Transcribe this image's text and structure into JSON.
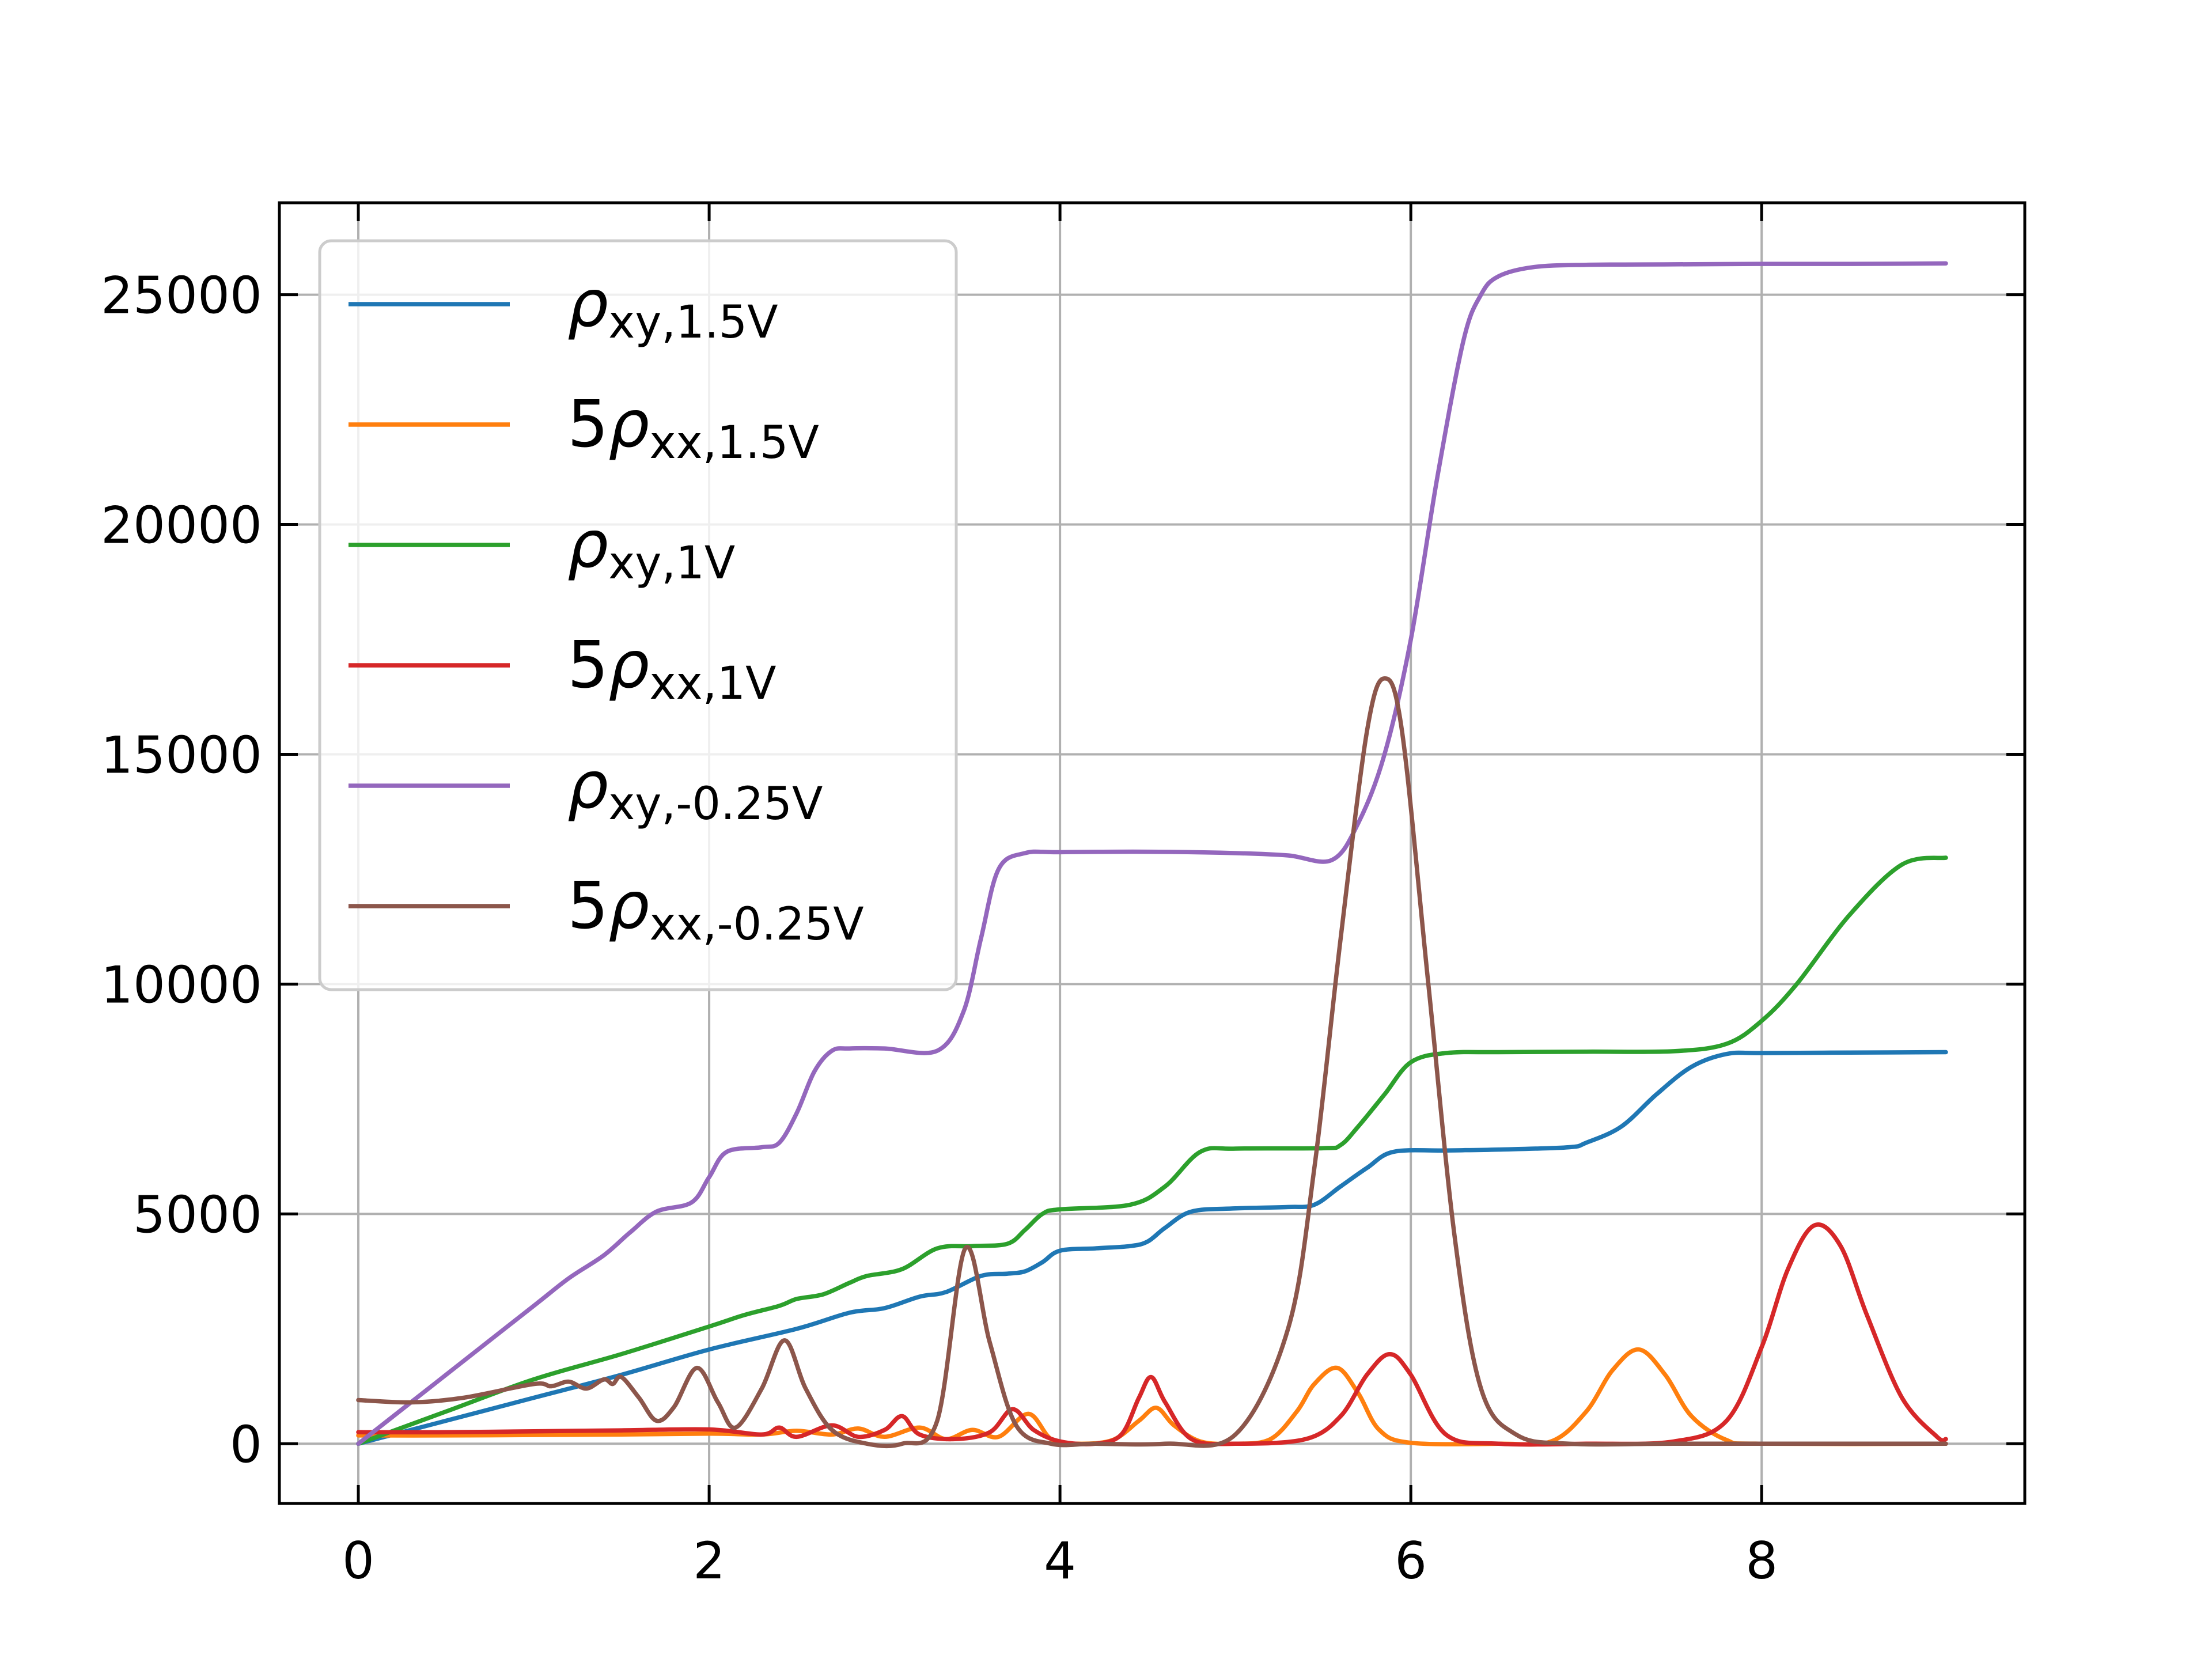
{
  "chart_data": {
    "type": "line",
    "title": "",
    "xlabel": "",
    "ylabel": "",
    "xlim": [
      -0.45,
      9.5
    ],
    "ylim": [
      -1300,
      27000
    ],
    "x_ticks": [
      0,
      2,
      4,
      6,
      8
    ],
    "y_ticks": [
      0,
      5000,
      10000,
      15000,
      20000,
      25000
    ],
    "x_tick_labels": [
      "0",
      "2",
      "4",
      "6",
      "8"
    ],
    "y_tick_labels": [
      "0",
      "5000",
      "10000",
      "15000",
      "20000",
      "25000"
    ],
    "grid": true,
    "tick_direction": "in",
    "ticks_on_all_sides": true,
    "legend_position": "top-left",
    "series": [
      {
        "name_prefix": "",
        "name_symbol": "ρ",
        "name_sub": "xy,1.5V",
        "color": "#1f77b4",
        "x": [
          0,
          0.5,
          1.0,
          1.5,
          2.0,
          2.5,
          2.8,
          3.0,
          3.2,
          3.35,
          3.55,
          3.7,
          3.8,
          3.9,
          4.0,
          4.2,
          4.4,
          4.5,
          4.6,
          4.75,
          5.0,
          5.3,
          5.45,
          5.6,
          5.75,
          5.9,
          6.2,
          6.5,
          6.9,
          7.0,
          7.2,
          7.4,
          7.6,
          7.8,
          8.0,
          8.5,
          9.05
        ],
        "y": [
          0,
          500,
          1000,
          1500,
          2050,
          2500,
          2850,
          2950,
          3200,
          3300,
          3650,
          3700,
          3750,
          3950,
          4200,
          4250,
          4300,
          4400,
          4700,
          5050,
          5120,
          5150,
          5200,
          5600,
          6000,
          6350,
          6380,
          6400,
          6450,
          6550,
          6900,
          7600,
          8200,
          8480,
          8500,
          8510,
          8520
        ]
      },
      {
        "name_prefix": "5",
        "name_symbol": "ρ",
        "name_sub": "xx,1.5V",
        "color": "#ff7f0e",
        "x": [
          0,
          0.5,
          1.0,
          1.5,
          2.0,
          2.3,
          2.5,
          2.7,
          2.85,
          3.0,
          3.2,
          3.35,
          3.5,
          3.65,
          3.82,
          3.95,
          4.1,
          4.3,
          4.45,
          4.55,
          4.65,
          4.8,
          5.0,
          5.2,
          5.35,
          5.45,
          5.58,
          5.7,
          5.82,
          6.0,
          6.5,
          6.8,
          7.0,
          7.15,
          7.3,
          7.45,
          7.6,
          7.8,
          8.0,
          9.05
        ],
        "y": [
          180,
          180,
          190,
          200,
          220,
          200,
          280,
          200,
          330,
          150,
          350,
          100,
          300,
          150,
          650,
          100,
          0,
          80,
          500,
          780,
          400,
          50,
          0,
          100,
          700,
          1300,
          1650,
          1100,
          300,
          20,
          0,
          50,
          700,
          1600,
          2050,
          1500,
          600,
          80,
          0,
          0
        ]
      },
      {
        "name_prefix": "",
        "name_symbol": "ρ",
        "name_sub": "xy,1V",
        "color": "#2ca02c",
        "x": [
          0,
          0.5,
          1.0,
          1.5,
          2.0,
          2.2,
          2.4,
          2.5,
          2.65,
          2.8,
          2.9,
          3.1,
          3.3,
          3.5,
          3.7,
          3.8,
          3.9,
          4.0,
          4.4,
          4.6,
          4.8,
          5.0,
          5.5,
          5.6,
          5.7,
          5.85,
          6.0,
          6.2,
          6.5,
          7.0,
          7.5,
          7.8,
          8.0,
          8.2,
          8.5,
          8.8,
          9.05
        ],
        "y": [
          0,
          700,
          1400,
          1950,
          2550,
          2800,
          3000,
          3150,
          3250,
          3500,
          3650,
          3800,
          4250,
          4300,
          4350,
          4650,
          5000,
          5100,
          5200,
          5600,
          6350,
          6420,
          6430,
          6500,
          6900,
          7600,
          8300,
          8500,
          8520,
          8530,
          8540,
          8700,
          9200,
          10000,
          11500,
          12600,
          12750
        ]
      },
      {
        "name_prefix": "5",
        "name_symbol": "ρ",
        "name_sub": "xx,1V",
        "color": "#d62728",
        "x": [
          0,
          0.5,
          1.0,
          1.5,
          2.0,
          2.3,
          2.4,
          2.5,
          2.7,
          2.85,
          3.0,
          3.1,
          3.2,
          3.4,
          3.6,
          3.73,
          3.85,
          4.0,
          4.2,
          4.35,
          4.45,
          4.52,
          4.6,
          4.75,
          5.0,
          5.4,
          5.6,
          5.75,
          5.88,
          6.0,
          6.2,
          6.5,
          7.0,
          7.5,
          7.8,
          8.0,
          8.15,
          8.3,
          8.45,
          8.6,
          8.8,
          9.0,
          9.05
        ],
        "y": [
          250,
          250,
          270,
          290,
          310,
          200,
          350,
          150,
          400,
          150,
          300,
          600,
          200,
          100,
          250,
          750,
          300,
          50,
          0,
          200,
          1000,
          1450,
          900,
          100,
          0,
          100,
          600,
          1500,
          1950,
          1500,
          200,
          0,
          0,
          50,
          500,
          2100,
          3800,
          4750,
          4300,
          2800,
          1000,
          150,
          100
        ]
      },
      {
        "name_prefix": "",
        "name_symbol": "ρ",
        "name_sub": "xy,-0.25V",
        "color": "#9467bd",
        "x": [
          0,
          0.5,
          1.0,
          1.2,
          1.4,
          1.55,
          1.7,
          1.9,
          2.0,
          2.1,
          2.3,
          2.4,
          2.5,
          2.6,
          2.7,
          2.8,
          3.0,
          3.3,
          3.45,
          3.55,
          3.65,
          3.8,
          4.0,
          4.5,
          5.0,
          5.3,
          5.55,
          5.7,
          5.85,
          6.0,
          6.15,
          6.3,
          6.4,
          6.5,
          6.7,
          7.0,
          7.5,
          8.0,
          8.5,
          9.05
        ],
        "y": [
          0,
          1500,
          3000,
          3600,
          4100,
          4600,
          5050,
          5250,
          5800,
          6350,
          6450,
          6550,
          7200,
          8100,
          8550,
          8600,
          8600,
          8550,
          9400,
          11000,
          12500,
          12850,
          12870,
          12880,
          12850,
          12800,
          12700,
          13500,
          15000,
          17500,
          21000,
          24000,
          25000,
          25400,
          25600,
          25650,
          25660,
          25670,
          25670,
          25680
        ]
      },
      {
        "name_prefix": "5",
        "name_symbol": "ρ",
        "name_sub": "xx,-0.25V",
        "color": "#8c564b",
        "x": [
          0,
          0.3,
          0.6,
          1.0,
          1.1,
          1.2,
          1.3,
          1.4,
          1.45,
          1.5,
          1.6,
          1.7,
          1.8,
          1.93,
          2.05,
          2.15,
          2.3,
          2.43,
          2.55,
          2.7,
          2.9,
          3.1,
          3.3,
          3.46,
          3.6,
          3.75,
          3.95,
          4.2,
          4.6,
          5.0,
          5.3,
          5.45,
          5.6,
          5.75,
          5.85,
          5.95,
          6.1,
          6.25,
          6.4,
          6.6,
          6.9,
          7.5,
          8.5,
          9.05
        ],
        "y": [
          950,
          900,
          1000,
          1300,
          1250,
          1350,
          1200,
          1400,
          1300,
          1450,
          1000,
          500,
          800,
          1650,
          900,
          350,
          1200,
          2250,
          1200,
          300,
          0,
          0,
          500,
          4250,
          2200,
          400,
          0,
          0,
          0,
          200,
          2500,
          6000,
          11000,
          15500,
          16650,
          15500,
          10000,
          4500,
          1200,
          200,
          0,
          0,
          0,
          0
        ]
      }
    ]
  }
}
